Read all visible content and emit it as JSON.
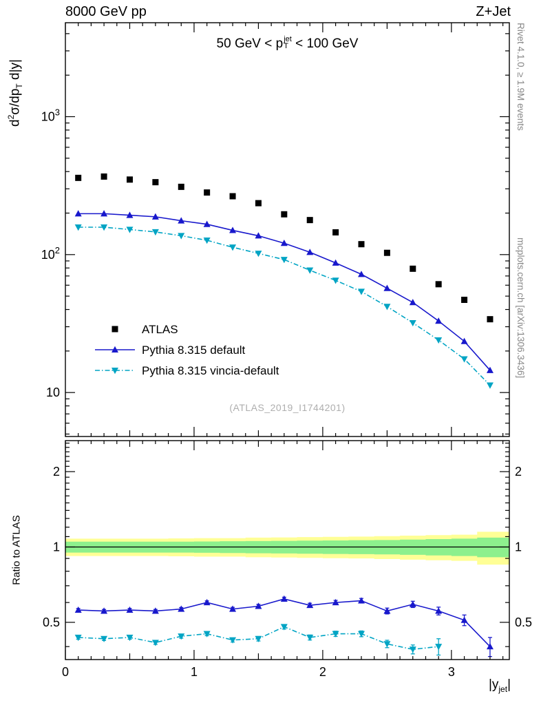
{
  "header": {
    "left": "8000 GeV pp",
    "right": "Z+Jet"
  },
  "watermark": "(ATLAS_2019_I1744201)",
  "side_notes": {
    "rivet": "Rivet 4.1.0, ≥ 1.9M events",
    "mcplots": "mcplots.cern.ch [arXiv:1306.3436]"
  },
  "labels": {
    "title": {
      "pre": "50 GeV < p",
      "sup": "jet",
      "sub": "T",
      "post": " < 100 GeV"
    },
    "ylabel": {
      "d": "d",
      "sup2": "2",
      "mid": "σ/dp",
      "subT": "T",
      "post": " d|y|"
    },
    "ratio_ylabel": "Ratio to ATLAS",
    "xlabel": {
      "pre": "|y",
      "sub": "jet",
      "post": "|"
    }
  },
  "chart_data": [
    {
      "type": "line",
      "panel": "main",
      "title": "50 GeV < p_T^jet < 100 GeV",
      "xlabel": "|y_jet|",
      "ylabel": "d2sigma/dp_T d|y|",
      "yscale": "log",
      "xlim": [
        0,
        3.45
      ],
      "ylim": [
        4.8,
        4800
      ],
      "xticks": [
        0,
        1,
        2,
        3
      ],
      "yticks": [
        10,
        100,
        1000
      ],
      "legend_position": "lower-left",
      "x": [
        0.1,
        0.3,
        0.5,
        0.7,
        0.9,
        1.1,
        1.3,
        1.5,
        1.7,
        1.9,
        2.1,
        2.3,
        2.5,
        2.7,
        2.9,
        3.1,
        3.3
      ],
      "series": [
        {
          "name": "ATLAS",
          "color": "#000000",
          "marker": "square",
          "line": "none",
          "values": [
            360,
            368,
            350,
            335,
            310,
            282,
            265,
            236,
            196,
            178,
            145,
            119,
            103,
            79,
            61,
            47,
            34
          ]
        },
        {
          "name": "Pythia 8.315 default",
          "color": "#1818cc",
          "marker": "triangle-up",
          "line": "solid",
          "values": [
            198,
            198,
            193,
            188,
            176,
            166,
            150,
            137,
            121,
            104,
            87,
            72,
            57,
            45,
            33,
            23.5,
            14.5
          ]
        },
        {
          "name": "Pythia 8.315 vincia-default",
          "color": "#00a4c4",
          "marker": "triangle-down",
          "line": "dashdot",
          "values": [
            158,
            158,
            152,
            146,
            137,
            127,
            113,
            102,
            92,
            77,
            65,
            54,
            42,
            32,
            24,
            17.5,
            11.3
          ]
        }
      ]
    },
    {
      "type": "line",
      "panel": "ratio",
      "ylabel": "Ratio to ATLAS",
      "yscale": "log",
      "xlim": [
        0,
        3.45
      ],
      "ylim": [
        0.355,
        2.66
      ],
      "xticks": [
        0,
        1,
        2,
        3
      ],
      "yticks": [
        0.5,
        1,
        2
      ],
      "reference_line": 1,
      "x": [
        0.1,
        0.3,
        0.5,
        0.7,
        0.9,
        1.1,
        1.3,
        1.5,
        1.7,
        1.9,
        2.1,
        2.3,
        2.5,
        2.7,
        2.9,
        3.1,
        3.3
      ],
      "bands": {
        "edges": [
          0,
          0.2,
          0.4,
          0.6,
          0.8,
          1.0,
          1.2,
          1.4,
          1.6,
          1.8,
          2.0,
          2.2,
          2.4,
          2.6,
          2.8,
          3.0,
          3.2,
          3.45
        ],
        "yellow": {
          "color": "#ffff96",
          "half": [
            0.08,
            0.08,
            0.08,
            0.08,
            0.082,
            0.085,
            0.085,
            0.09,
            0.092,
            0.095,
            0.098,
            0.1,
            0.105,
            0.11,
            0.115,
            0.12,
            0.15
          ]
        },
        "green": {
          "color": "#8df08d",
          "half": [
            0.05,
            0.05,
            0.05,
            0.05,
            0.05,
            0.052,
            0.054,
            0.056,
            0.058,
            0.06,
            0.062,
            0.064,
            0.066,
            0.07,
            0.075,
            0.08,
            0.09
          ]
        }
      },
      "series": [
        {
          "name": "Pythia 8.315 default",
          "color": "#1818cc",
          "marker": "triangle-up",
          "line": "solid",
          "values": [
            0.56,
            0.555,
            0.56,
            0.555,
            0.565,
            0.6,
            0.565,
            0.58,
            0.62,
            0.585,
            0.6,
            0.61,
            0.555,
            0.59,
            0.555,
            0.51,
            0.4
          ],
          "yerr": [
            0.008,
            0.008,
            0.008,
            0.008,
            0.008,
            0.009,
            0.009,
            0.01,
            0.01,
            0.011,
            0.012,
            0.013,
            0.015,
            0.017,
            0.02,
            0.025,
            0.035
          ]
        },
        {
          "name": "Pythia 8.315 vincia-default",
          "color": "#00a4c4",
          "marker": "triangle-down",
          "line": "dashdot",
          "values": [
            0.435,
            0.43,
            0.435,
            0.415,
            0.44,
            0.45,
            0.425,
            0.43,
            0.48,
            0.435,
            0.45,
            0.45,
            0.41,
            0.39,
            0.4,
            null,
            null
          ],
          "yerr": [
            0.007,
            0.007,
            0.007,
            0.007,
            0.008,
            0.008,
            0.008,
            0.009,
            0.01,
            0.01,
            0.011,
            0.012,
            0.014,
            0.016,
            0.03,
            null,
            null
          ]
        }
      ]
    }
  ]
}
